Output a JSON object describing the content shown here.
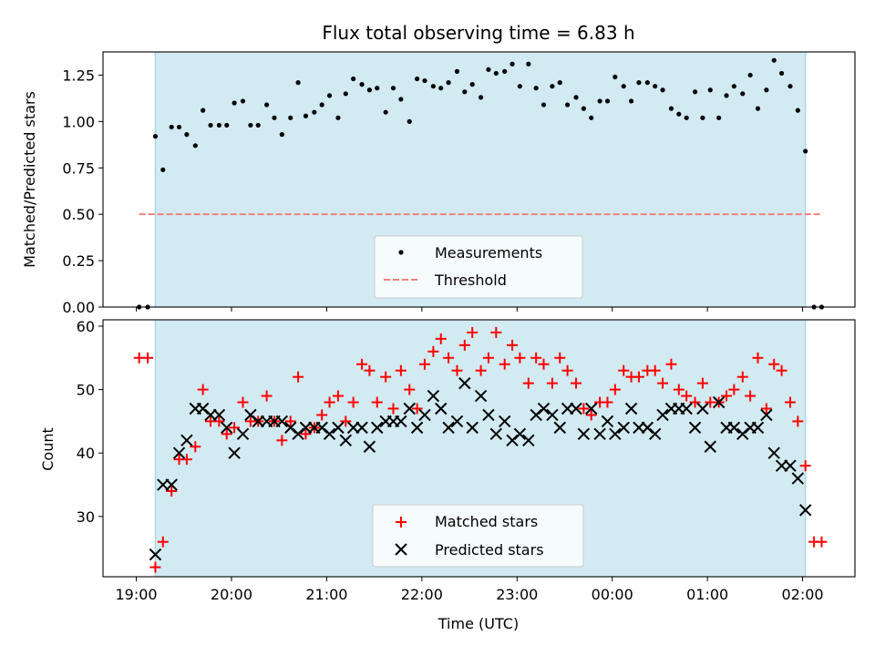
{
  "chart_data": [
    {
      "type": "scatter",
      "title": "Flux total observing time = 6.83 h",
      "ylabel": "Matched/Predicted stars",
      "xlabel": "",
      "ylim": [
        0,
        1.375
      ],
      "xlim": [
        18.65,
        26.55
      ],
      "yticks": [
        0.0,
        0.25,
        0.5,
        0.75,
        1.0,
        1.25
      ],
      "ytick_labels": [
        "0.00",
        "0.25",
        "0.50",
        "0.75",
        "1.00",
        "1.25"
      ],
      "grid": false,
      "legend_position": "lower-center",
      "shaded_interval": [
        19.2,
        26.03
      ],
      "shade_color": "#add8e6",
      "threshold": {
        "name": "Threshold",
        "y": 0.5,
        "x_range": [
          19.03,
          26.2
        ],
        "color": "#f08080",
        "style": "dashed"
      },
      "series": [
        {
          "name": "Measurements",
          "color": "#000000",
          "marker": "dot",
          "points": [
            [
              19.03,
              0.0
            ],
            [
              19.12,
              0.0
            ],
            [
              19.2,
              0.92
            ],
            [
              19.28,
              0.74
            ],
            [
              19.37,
              0.97
            ],
            [
              19.45,
              0.97
            ],
            [
              19.53,
              0.93
            ],
            [
              19.62,
              0.87
            ],
            [
              19.7,
              1.06
            ],
            [
              19.78,
              0.98
            ],
            [
              19.87,
              0.98
            ],
            [
              19.95,
              0.98
            ],
            [
              20.03,
              1.1
            ],
            [
              20.12,
              1.11
            ],
            [
              20.2,
              0.98
            ],
            [
              20.28,
              0.98
            ],
            [
              20.37,
              1.09
            ],
            [
              20.45,
              1.02
            ],
            [
              20.53,
              0.93
            ],
            [
              20.62,
              1.02
            ],
            [
              20.7,
              1.21
            ],
            [
              20.78,
              1.03
            ],
            [
              20.87,
              1.05
            ],
            [
              20.95,
              1.09
            ],
            [
              21.03,
              1.14
            ],
            [
              21.12,
              1.02
            ],
            [
              21.2,
              1.15
            ],
            [
              21.28,
              1.23
            ],
            [
              21.37,
              1.2
            ],
            [
              21.45,
              1.17
            ],
            [
              21.53,
              1.18
            ],
            [
              21.62,
              1.05
            ],
            [
              21.7,
              1.18
            ],
            [
              21.78,
              1.12
            ],
            [
              21.87,
              1.0
            ],
            [
              21.95,
              1.23
            ],
            [
              22.03,
              1.22
            ],
            [
              22.12,
              1.19
            ],
            [
              22.2,
              1.18
            ],
            [
              22.28,
              1.21
            ],
            [
              22.37,
              1.27
            ],
            [
              22.45,
              1.16
            ],
            [
              22.53,
              1.2
            ],
            [
              22.62,
              1.13
            ],
            [
              22.7,
              1.28
            ],
            [
              22.78,
              1.26
            ],
            [
              22.87,
              1.27
            ],
            [
              22.95,
              1.31
            ],
            [
              23.03,
              1.19
            ],
            [
              23.12,
              1.31
            ],
            [
              23.2,
              1.18
            ],
            [
              23.28,
              1.09
            ],
            [
              23.37,
              1.19
            ],
            [
              23.45,
              1.21
            ],
            [
              23.53,
              1.09
            ],
            [
              23.62,
              1.13
            ],
            [
              23.7,
              1.07
            ],
            [
              23.78,
              1.02
            ],
            [
              23.87,
              1.11
            ],
            [
              23.95,
              1.11
            ],
            [
              24.03,
              1.24
            ],
            [
              24.12,
              1.19
            ],
            [
              24.2,
              1.11
            ],
            [
              24.28,
              1.21
            ],
            [
              24.37,
              1.21
            ],
            [
              24.45,
              1.19
            ],
            [
              24.53,
              1.17
            ],
            [
              24.62,
              1.07
            ],
            [
              24.7,
              1.04
            ],
            [
              24.78,
              1.02
            ],
            [
              24.87,
              1.16
            ],
            [
              24.95,
              1.02
            ],
            [
              25.03,
              1.17
            ],
            [
              25.12,
              1.02
            ],
            [
              25.2,
              1.14
            ],
            [
              25.28,
              1.19
            ],
            [
              25.37,
              1.15
            ],
            [
              25.45,
              1.25
            ],
            [
              25.53,
              1.07
            ],
            [
              25.62,
              1.17
            ],
            [
              25.7,
              1.33
            ],
            [
              25.78,
              1.26
            ],
            [
              25.87,
              1.19
            ],
            [
              25.95,
              1.06
            ],
            [
              26.03,
              0.84
            ],
            [
              26.12,
              0.0
            ],
            [
              26.2,
              0.0
            ]
          ]
        }
      ]
    },
    {
      "type": "scatter",
      "title": "",
      "ylabel": "Count",
      "xlabel": "Time (UTC)",
      "ylim": [
        20.5,
        61
      ],
      "xlim": [
        18.65,
        26.55
      ],
      "yticks": [
        30,
        40,
        50,
        60
      ],
      "ytick_labels": [
        "30",
        "40",
        "50",
        "60"
      ],
      "xticks": [
        19,
        20,
        21,
        22,
        23,
        24,
        25,
        26
      ],
      "xtick_labels": [
        "19:00",
        "20:00",
        "21:00",
        "22:00",
        "23:00",
        "00:00",
        "01:00",
        "02:00"
      ],
      "grid": false,
      "legend_position": "lower-center",
      "shaded_interval": [
        19.2,
        26.03
      ],
      "shade_color": "#add8e6",
      "series": [
        {
          "name": "Matched stars",
          "color": "#ff0000",
          "marker": "plus",
          "x": [
            19.03,
            19.12,
            19.2,
            19.28,
            19.37,
            19.45,
            19.53,
            19.62,
            19.7,
            19.78,
            19.87,
            19.95,
            20.03,
            20.12,
            20.2,
            20.28,
            20.37,
            20.45,
            20.53,
            20.62,
            20.7,
            20.78,
            20.87,
            20.95,
            21.03,
            21.12,
            21.2,
            21.28,
            21.37,
            21.45,
            21.53,
            21.62,
            21.7,
            21.78,
            21.87,
            21.95,
            22.03,
            22.12,
            22.2,
            22.28,
            22.37,
            22.45,
            22.53,
            22.62,
            22.7,
            22.78,
            22.87,
            22.95,
            23.03,
            23.12,
            23.2,
            23.28,
            23.37,
            23.45,
            23.53,
            23.62,
            23.7,
            23.78,
            23.87,
            23.95,
            24.03,
            24.12,
            24.2,
            24.28,
            24.37,
            24.45,
            24.53,
            24.62,
            24.7,
            24.78,
            24.87,
            24.95,
            25.03,
            25.12,
            25.2,
            25.28,
            25.37,
            25.45,
            25.53,
            25.62,
            25.7,
            25.78,
            25.87,
            25.95,
            26.03,
            26.12,
            26.2
          ],
          "values": [
            55,
            55,
            22,
            26,
            34,
            39,
            39,
            41,
            50,
            45,
            45,
            43,
            44,
            48,
            45,
            45,
            49,
            45,
            42,
            45,
            52,
            43,
            44,
            46,
            48,
            49,
            45,
            48,
            54,
            53,
            48,
            52,
            47,
            53,
            50,
            47,
            54,
            56,
            58,
            55,
            53,
            57,
            59,
            53,
            55,
            59,
            54,
            57,
            55,
            51,
            55,
            54,
            51,
            55,
            53,
            51,
            47,
            46,
            48,
            48,
            50,
            53,
            52,
            52,
            53,
            53,
            51,
            54,
            50,
            49,
            48,
            51,
            48,
            48,
            49,
            50,
            52,
            49,
            55,
            47,
            54,
            53,
            48,
            45,
            38,
            26,
            26
          ]
        },
        {
          "name": "Predicted stars",
          "color": "#000000",
          "marker": "x",
          "x": [
            19.2,
            19.28,
            19.37,
            19.45,
            19.53,
            19.62,
            19.7,
            19.78,
            19.87,
            19.95,
            20.03,
            20.12,
            20.2,
            20.28,
            20.37,
            20.45,
            20.53,
            20.62,
            20.7,
            20.78,
            20.87,
            20.95,
            21.03,
            21.12,
            21.2,
            21.28,
            21.37,
            21.45,
            21.53,
            21.62,
            21.7,
            21.78,
            21.87,
            21.95,
            22.03,
            22.12,
            22.2,
            22.28,
            22.37,
            22.45,
            22.53,
            22.62,
            22.7,
            22.78,
            22.87,
            22.95,
            23.03,
            23.12,
            23.2,
            23.28,
            23.37,
            23.45,
            23.53,
            23.62,
            23.7,
            23.78,
            23.87,
            23.95,
            24.03,
            24.12,
            24.2,
            24.28,
            24.37,
            24.45,
            24.53,
            24.62,
            24.7,
            24.78,
            24.87,
            24.95,
            25.03,
            25.12,
            25.2,
            25.28,
            25.37,
            25.45,
            25.53,
            25.62,
            25.7,
            25.78,
            25.87,
            25.95,
            26.03
          ],
          "values": [
            24,
            35,
            35,
            40,
            42,
            47,
            47,
            46,
            46,
            44,
            40,
            43,
            46,
            45,
            45,
            45,
            45,
            44,
            43,
            44,
            44,
            44,
            43,
            44,
            42,
            44,
            44,
            41,
            44,
            45,
            45,
            45,
            47,
            44,
            46,
            49,
            47,
            44,
            45,
            51,
            44,
            49,
            46,
            43,
            45,
            42,
            43,
            42,
            46,
            47,
            46,
            44,
            47,
            47,
            43,
            47,
            43,
            45,
            43,
            44,
            47,
            44,
            44,
            43,
            46,
            47,
            47,
            47,
            44,
            47,
            41,
            48,
            44,
            44,
            43,
            44,
            44,
            46,
            40,
            38,
            38,
            36,
            31
          ]
        }
      ]
    }
  ]
}
